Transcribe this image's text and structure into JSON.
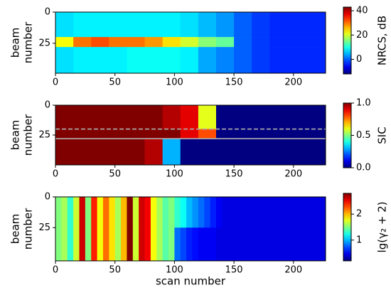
{
  "chart_data": [
    {
      "type": "heatmap",
      "colormap": "jet",
      "x_bins": [
        0,
        15,
        30,
        45,
        60,
        75,
        90,
        105,
        120,
        135,
        150,
        165,
        180,
        195,
        210,
        225,
        227
      ],
      "y_bins": [
        0,
        20,
        28,
        49
      ],
      "z": [
        [
          7,
          8,
          8,
          8,
          8,
          8,
          8,
          7,
          5,
          3,
          0,
          -2,
          -3,
          -3,
          -3,
          -3
        ],
        [
          22,
          30,
          32,
          30,
          30,
          28,
          24,
          20,
          16,
          14,
          0,
          -2,
          -3,
          -3,
          -3,
          -3
        ],
        [
          7,
          8,
          8,
          8,
          9,
          9,
          9,
          8,
          4,
          2,
          0,
          -2,
          -3,
          -3,
          -3,
          -3
        ]
      ],
      "xlim": [
        0,
        227
      ],
      "xticks": [
        0,
        50,
        100,
        150,
        200
      ],
      "ylim": [
        49,
        0
      ],
      "yticks": [
        0,
        25
      ],
      "ylabel_lines": [
        "beam",
        "number"
      ],
      "clim": [
        -12,
        43
      ],
      "cticks": [
        0,
        20,
        40
      ],
      "colorbar_label": "NRCS, dB"
    },
    {
      "type": "heatmap",
      "colormap": "jet",
      "x_bins": [
        0,
        15,
        30,
        45,
        60,
        75,
        90,
        105,
        120,
        135,
        150,
        165,
        180,
        195,
        210,
        225,
        227
      ],
      "y_bins": [
        0,
        20,
        28,
        50
      ],
      "z": [
        [
          1,
          1,
          1,
          1,
          1,
          1,
          0.95,
          0.9,
          0.6,
          0,
          0,
          0,
          0,
          0,
          0,
          0
        ],
        [
          1,
          1,
          1,
          1,
          1,
          1,
          1,
          0.9,
          0.8,
          0,
          0,
          0,
          0,
          0,
          0,
          0
        ],
        [
          1,
          1,
          1,
          1,
          1,
          0.95,
          0.3,
          0,
          0,
          0,
          0,
          0,
          0,
          0,
          0,
          0
        ]
      ],
      "xlim": [
        0,
        227
      ],
      "xticks": [
        0,
        50,
        100,
        150,
        200
      ],
      "ylim": [
        50,
        0
      ],
      "yticks": [
        0,
        25
      ],
      "ylabel_lines": [
        "beam",
        "number"
      ],
      "hlines": [
        {
          "y": 20,
          "style": "dashed",
          "color": "#b0b0b0"
        },
        {
          "y": 28,
          "style": "solid",
          "color": "#b0b0b0"
        }
      ],
      "clim": [
        0,
        1
      ],
      "cticks": [
        0.0,
        0.5,
        1.0
      ],
      "cticks_labels": [
        "0.0",
        "0.5",
        "1.0"
      ],
      "colorbar_label": "SIC"
    },
    {
      "type": "heatmap",
      "colormap": "jet",
      "x_bins": [
        0,
        5,
        10,
        15,
        20,
        25,
        30,
        35,
        40,
        45,
        50,
        55,
        60,
        65,
        70,
        75,
        80,
        85,
        90,
        95,
        100,
        105,
        110,
        115,
        120,
        125,
        130,
        135,
        140,
        145,
        150,
        155,
        160,
        165,
        170,
        175,
        180,
        185,
        190,
        195,
        200,
        205,
        210,
        215,
        220,
        225,
        227
      ],
      "y_bins": [
        0,
        25,
        52
      ],
      "z": [
        [
          1.5,
          1.6,
          1.3,
          1.7,
          2.6,
          1.5,
          2.4,
          1.8,
          2.2,
          1.9,
          1.6,
          2.0,
          2.8,
          1.7,
          2.6,
          2.5,
          1.8,
          1.6,
          1.4,
          1.5,
          1.3,
          1.2,
          1.0,
          0.9,
          0.8,
          0.7,
          0.6,
          0.5,
          0.45,
          0.45,
          0.45,
          0.45,
          0.45,
          0.45,
          0.45,
          0.45,
          0.45,
          0.45,
          0.45,
          0.45,
          0.45,
          0.45,
          0.45,
          0.45,
          0.45,
          0.45
        ],
        [
          1.5,
          1.6,
          1.3,
          1.7,
          2.6,
          1.5,
          2.4,
          1.8,
          2.2,
          1.9,
          1.6,
          2.0,
          2.8,
          1.7,
          2.6,
          2.5,
          1.8,
          1.6,
          1.4,
          1.5,
          0.8,
          0.7,
          0.6,
          0.55,
          0.5,
          0.5,
          0.5,
          0.45,
          0.45,
          0.45,
          0.45,
          0.45,
          0.45,
          0.45,
          0.45,
          0.45,
          0.45,
          0.45,
          0.45,
          0.45,
          0.45,
          0.45,
          0.45,
          0.45,
          0.45,
          0.45
        ]
      ],
      "xlim": [
        0,
        227
      ],
      "xticks": [
        0,
        50,
        100,
        150,
        200
      ],
      "ylim": [
        52,
        0
      ],
      "yticks": [
        0,
        25
      ],
      "ylabel_lines": [
        "beam",
        "number"
      ],
      "xlabel": "scan number",
      "clim": [
        0.2,
        2.8
      ],
      "cticks": [
        1,
        2
      ],
      "colorbar_label": "lg(γ₂ + 2)"
    }
  ]
}
